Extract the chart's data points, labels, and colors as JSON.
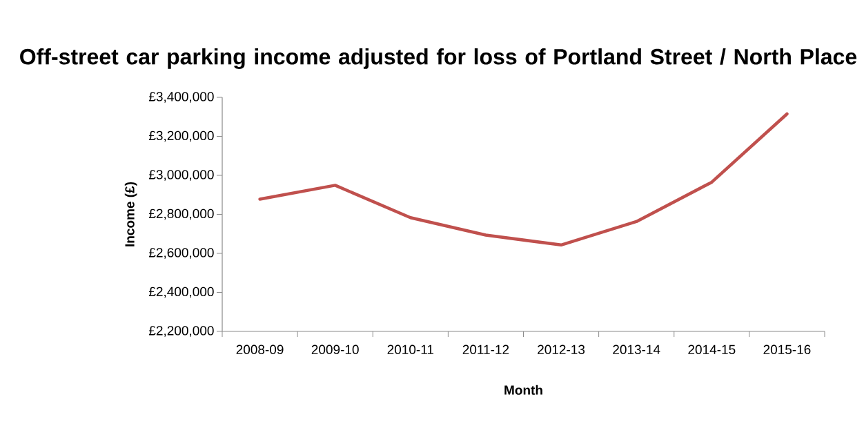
{
  "chart_data": {
    "type": "line",
    "title": "Off-street car parking income adjusted for loss of Portland Street / North Place",
    "xlabel": "Month",
    "ylabel": "Income (£)",
    "categories": [
      "2008-09",
      "2009-10",
      "2010-11",
      "2011-12",
      "2012-13",
      "2013-14",
      "2014-15",
      "2015-16"
    ],
    "series": [
      {
        "color": "#c0504d",
        "values": [
          2878000,
          2949000,
          2783000,
          2694000,
          2643000,
          2763000,
          2965000,
          3315000
        ]
      }
    ],
    "ylim": [
      2200000,
      3400000
    ],
    "yticks": [
      {
        "value": 2200000,
        "label": "£2,200,000"
      },
      {
        "value": 2400000,
        "label": "£2,400,000"
      },
      {
        "value": 2600000,
        "label": "£2,600,000"
      },
      {
        "value": 2800000,
        "label": "£2,800,000"
      },
      {
        "value": 3000000,
        "label": "£3,000,000"
      },
      {
        "value": 3200000,
        "label": "£3,200,000"
      },
      {
        "value": 3400000,
        "label": "£3,400,000"
      }
    ],
    "grid": false,
    "legend": false,
    "marker": "none",
    "line_style": "solid"
  }
}
